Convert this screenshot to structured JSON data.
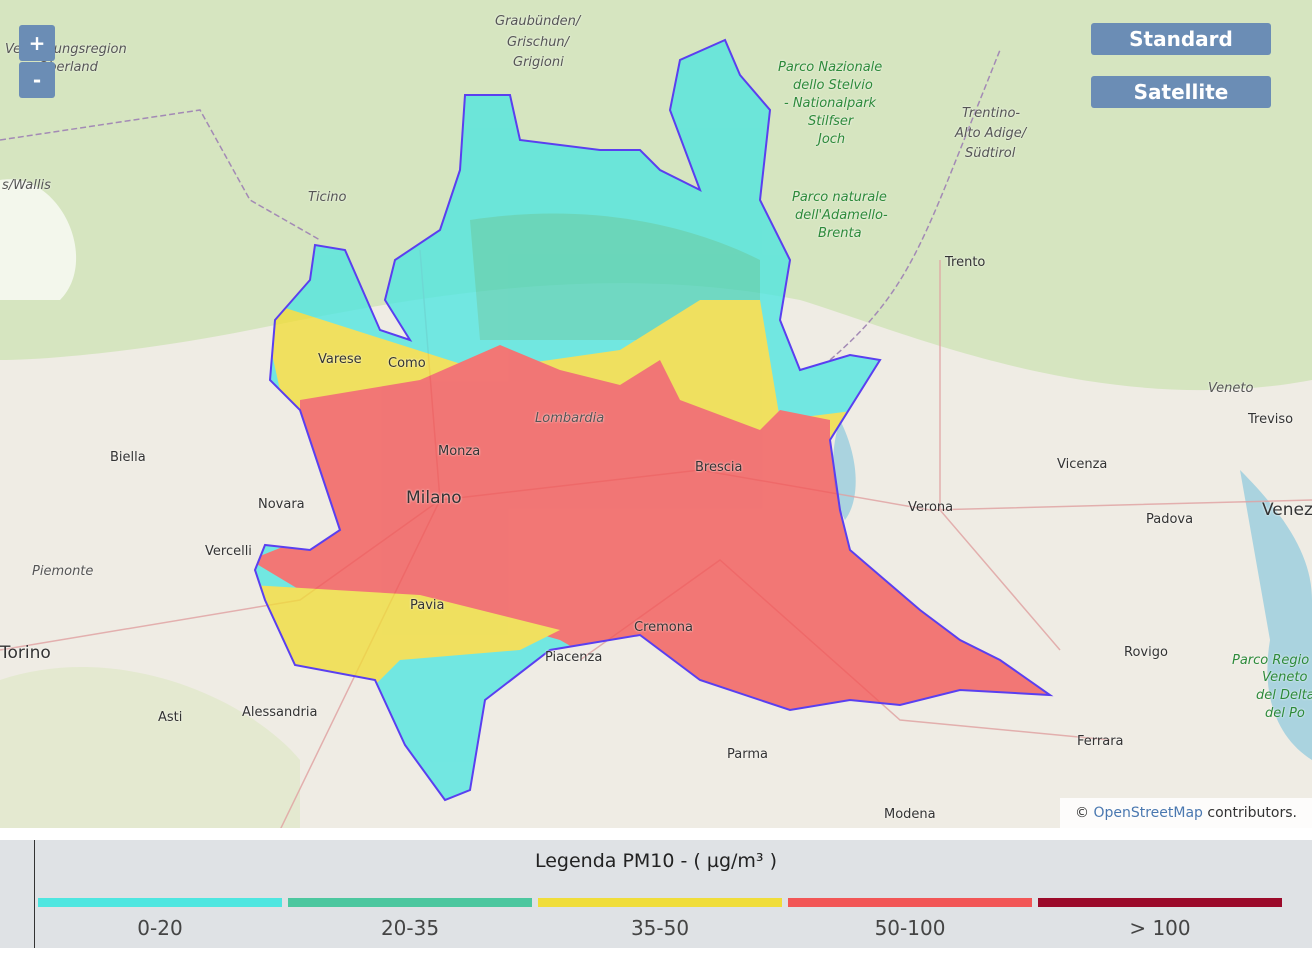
{
  "controls": {
    "zoom_in": "+",
    "zoom_out": "-",
    "layers": [
      "Standard",
      "Satellite"
    ]
  },
  "map": {
    "labels": [
      "Graubünden/",
      "Grischun/",
      "Grigioni",
      "Parco Nazionale",
      "dello Stelvio",
      "- Nationalpark",
      "Stilfser",
      "Joch",
      "Trentino-",
      "Alto Adige/",
      "Südtirol",
      "Verwaltungsregion",
      "Oberland",
      "s/Wallis",
      "Ticino",
      "Parco naturale",
      "dell'Adamello-",
      "Brenta",
      "Trento",
      "Varese",
      "Como",
      "Lombardia",
      "Monza",
      "Milano",
      "Brescia",
      "Biella",
      "Novara",
      "Vercelli",
      "Piemonte",
      "Verona",
      "Vicenza",
      "Padova",
      "Venez",
      "Veneto",
      "Treviso",
      "Torino",
      "Pavia",
      "Cremona",
      "Piacenza",
      "Rovigo",
      "Asti",
      "Alessandria",
      "Parma",
      "Ferrara",
      "Modena",
      "Parco Regio",
      "Veneto",
      "del Delta",
      "del Po"
    ],
    "attribution_symbol": "©",
    "attribution_link": "OpenStreetMap",
    "attribution_text": "contributors."
  },
  "legend": {
    "title": "Legenda PM10 - ( µg/m³ )",
    "items": [
      {
        "label": "0-20",
        "color": "#4ee6e0"
      },
      {
        "label": "20-35",
        "color": "#4cc79f"
      },
      {
        "label": "35-50",
        "color": "#f0dd3a"
      },
      {
        "label": "50-100",
        "color": "#f25656"
      },
      {
        "label": "> 100",
        "color": "#9b0a2a"
      }
    ]
  }
}
